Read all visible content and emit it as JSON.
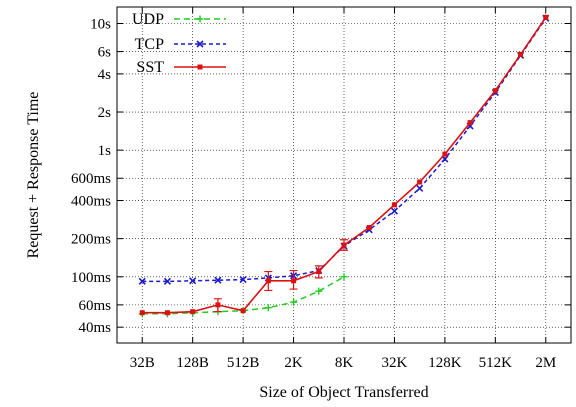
{
  "chart_data": {
    "type": "line",
    "title": "",
    "xlabel": "Size of Object Transferred",
    "ylabel": "Request + Response Time",
    "x_scale": "log2",
    "y_scale": "log",
    "xlim_bytes": [
      16,
      4194304
    ],
    "ylim_ms": [
      30,
      13500
    ],
    "grid": true,
    "legend_position": "top-left",
    "x_ticks": [
      {
        "label": "32B",
        "bytes": 32
      },
      {
        "label": "128B",
        "bytes": 128
      },
      {
        "label": "512B",
        "bytes": 512
      },
      {
        "label": "2K",
        "bytes": 2048
      },
      {
        "label": "8K",
        "bytes": 8192
      },
      {
        "label": "32K",
        "bytes": 32768
      },
      {
        "label": "128K",
        "bytes": 131072
      },
      {
        "label": "512K",
        "bytes": 524288
      },
      {
        "label": "2M",
        "bytes": 2097152
      }
    ],
    "y_ticks": [
      {
        "label": "40ms",
        "ms": 40
      },
      {
        "label": "60ms",
        "ms": 60
      },
      {
        "label": "100ms",
        "ms": 100
      },
      {
        "label": "200ms",
        "ms": 200
      },
      {
        "label": "400ms",
        "ms": 400
      },
      {
        "label": "600ms",
        "ms": 600
      },
      {
        "label": "1s",
        "ms": 1000
      },
      {
        "label": "2s",
        "ms": 2000
      },
      {
        "label": "4s",
        "ms": 4000
      },
      {
        "label": "6s",
        "ms": 6000
      },
      {
        "label": "10s",
        "ms": 10000
      }
    ],
    "series": [
      {
        "name": "UDP",
        "color": "#22cc22",
        "dash": "dashed",
        "marker": "plus",
        "points": [
          {
            "x": 32,
            "y": 51
          },
          {
            "x": 64,
            "y": 51
          },
          {
            "x": 128,
            "y": 52
          },
          {
            "x": 256,
            "y": 53
          },
          {
            "x": 512,
            "y": 54
          },
          {
            "x": 1024,
            "y": 57
          },
          {
            "x": 2048,
            "y": 63
          },
          {
            "x": 4096,
            "y": 77
          },
          {
            "x": 8192,
            "y": 100
          }
        ]
      },
      {
        "name": "TCP",
        "color": "#1a1acc",
        "dash": "dashed",
        "marker": "x",
        "points": [
          {
            "x": 32,
            "y": 92
          },
          {
            "x": 64,
            "y": 92
          },
          {
            "x": 128,
            "y": 93
          },
          {
            "x": 256,
            "y": 94
          },
          {
            "x": 512,
            "y": 95
          },
          {
            "x": 1024,
            "y": 98
          },
          {
            "x": 2048,
            "y": 102
          },
          {
            "x": 4096,
            "y": 112
          },
          {
            "x": 8192,
            "y": 175
          },
          {
            "x": 16384,
            "y": 235
          },
          {
            "x": 32768,
            "y": 330
          },
          {
            "x": 65536,
            "y": 500
          },
          {
            "x": 131072,
            "y": 850
          },
          {
            "x": 262144,
            "y": 1550
          },
          {
            "x": 524288,
            "y": 2850
          },
          {
            "x": 1048576,
            "y": 5600
          },
          {
            "x": 2097152,
            "y": 11000
          }
        ]
      },
      {
        "name": "SST",
        "color": "#dd1111",
        "dash": "solid",
        "marker": "square",
        "points": [
          {
            "x": 32,
            "y": 52
          },
          {
            "x": 64,
            "y": 52
          },
          {
            "x": 128,
            "y": 53
          },
          {
            "x": 256,
            "y": 60,
            "err": [
              53,
              67
            ]
          },
          {
            "x": 512,
            "y": 54
          },
          {
            "x": 1024,
            "y": 93,
            "err": [
              78,
              110
            ]
          },
          {
            "x": 2048,
            "y": 93,
            "err": [
              80,
              112
            ]
          },
          {
            "x": 4096,
            "y": 110,
            "err": [
              98,
              122
            ]
          },
          {
            "x": 8192,
            "y": 178,
            "err": [
              162,
              196
            ]
          },
          {
            "x": 16384,
            "y": 245
          },
          {
            "x": 32768,
            "y": 370
          },
          {
            "x": 65536,
            "y": 560
          },
          {
            "x": 131072,
            "y": 930
          },
          {
            "x": 262144,
            "y": 1650
          },
          {
            "x": 524288,
            "y": 2950
          },
          {
            "x": 1048576,
            "y": 5700
          },
          {
            "x": 2097152,
            "y": 11200
          }
        ]
      }
    ]
  }
}
